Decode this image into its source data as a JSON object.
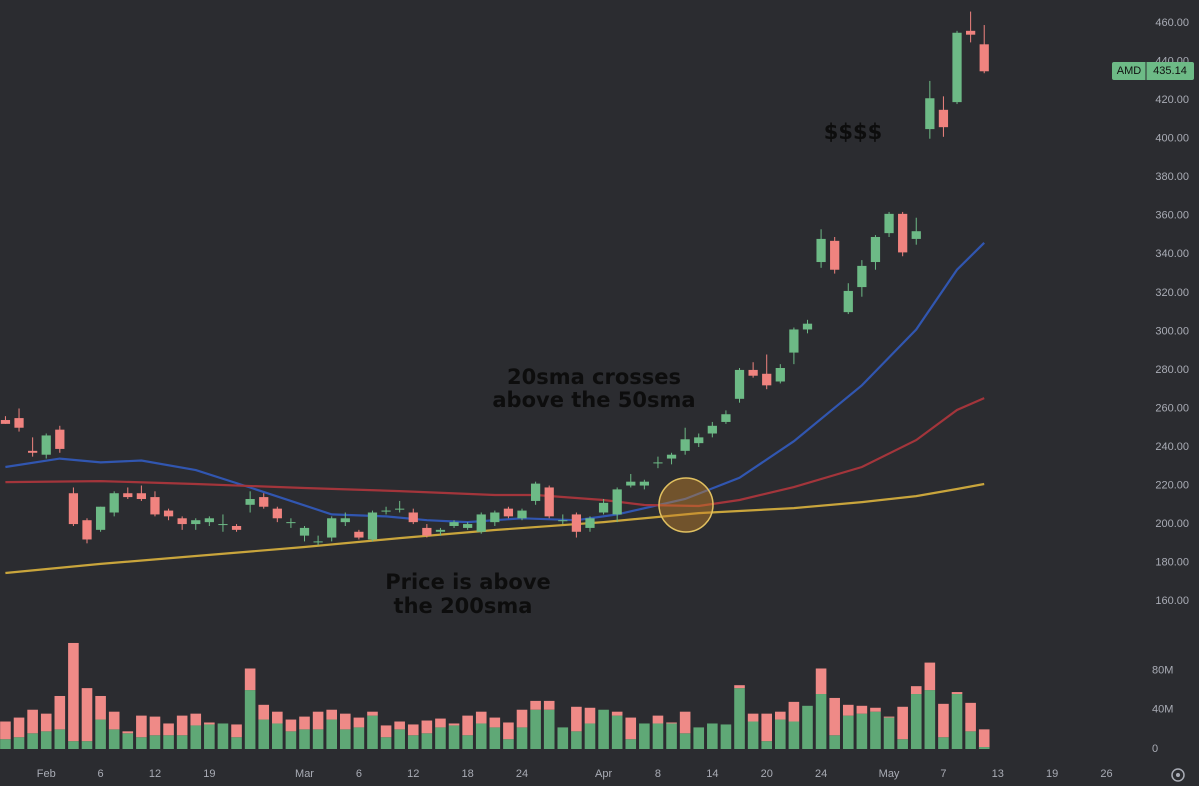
{
  "chart_data": {
    "type": "candlestick",
    "annotations": [
      "20sma crosses",
      "above the 50sma",
      "Price is above",
      "the 200sma",
      "$$$$"
    ],
    "last_price": {
      "symbol": "AMD",
      "value": 435.14
    },
    "up_color": "#6dba86",
    "down_color": "#f0837f",
    "xlim": [
      -0.4,
      81.4
    ],
    "xticks": [
      {
        "value": 3,
        "label": "Feb"
      },
      {
        "value": 7,
        "label": "6"
      },
      {
        "value": 11,
        "label": "12"
      },
      {
        "value": 15,
        "label": "19"
      },
      {
        "value": 22,
        "label": "Mar"
      },
      {
        "value": 26,
        "label": "6"
      },
      {
        "value": 30,
        "label": "12"
      },
      {
        "value": 34,
        "label": "18"
      },
      {
        "value": 38,
        "label": "24"
      },
      {
        "value": 44,
        "label": "Apr"
      },
      {
        "value": 48,
        "label": "8"
      },
      {
        "value": 52,
        "label": "14"
      },
      {
        "value": 56,
        "label": "20"
      },
      {
        "value": 60,
        "label": "24"
      },
      {
        "value": 65,
        "label": "May"
      },
      {
        "value": 69,
        "label": "7"
      },
      {
        "value": 73,
        "label": "13"
      },
      {
        "value": 77,
        "label": "19"
      },
      {
        "value": 81,
        "label": "26"
      }
    ],
    "ylim": [
      150,
      472
    ],
    "yticks": [
      {
        "value": 160,
        "label": "160.00"
      },
      {
        "value": 180,
        "label": "180.00"
      },
      {
        "value": 200,
        "label": "200.00"
      },
      {
        "value": 220,
        "label": "220.00"
      },
      {
        "value": 240,
        "label": "240.00"
      },
      {
        "value": 260,
        "label": "260.00"
      },
      {
        "value": 280,
        "label": "280.00"
      },
      {
        "value": 300,
        "label": "300.00"
      },
      {
        "value": 320,
        "label": "320.00"
      },
      {
        "value": 340,
        "label": "340.00"
      },
      {
        "value": 360,
        "label": "360.00"
      },
      {
        "value": 380,
        "label": "380.00"
      },
      {
        "value": 400,
        "label": "400.00"
      },
      {
        "value": 420,
        "label": "420.00"
      },
      {
        "value": 440,
        "label": "440.00"
      },
      {
        "value": 460,
        "label": "460.00"
      }
    ],
    "open": [
      254,
      255,
      238,
      236,
      249,
      216,
      202,
      197,
      206,
      216,
      216,
      214,
      207,
      203,
      200,
      201,
      200,
      199,
      210,
      214,
      208,
      201,
      194,
      191,
      193,
      201,
      196,
      192,
      207,
      208,
      206,
      198,
      196,
      199,
      198,
      196,
      201,
      208,
      203,
      212,
      219,
      202,
      205,
      198,
      206,
      205,
      220,
      220,
      232,
      234,
      238,
      242,
      247,
      253,
      265,
      280,
      278,
      274,
      289,
      301,
      336,
      347,
      310,
      323,
      336,
      351,
      361,
      348,
      405,
      415,
      419,
      456,
      449
    ],
    "high": [
      256,
      260,
      245,
      247,
      251,
      219,
      203,
      209,
      217,
      219,
      220,
      217,
      208,
      204,
      203,
      204,
      205,
      200,
      217,
      216,
      209,
      203,
      199,
      194,
      204,
      206,
      197,
      207,
      209,
      212,
      208,
      200,
      198,
      202,
      201,
      206,
      207,
      209,
      208,
      222,
      220,
      205,
      206,
      204,
      213,
      219,
      226,
      223,
      235,
      237,
      250,
      247,
      253,
      259,
      281,
      284,
      288,
      283,
      302,
      306,
      353,
      349,
      325,
      337,
      350,
      362,
      362,
      359,
      430,
      422,
      456,
      466,
      459
    ],
    "low": [
      252,
      248,
      235,
      234,
      237,
      199,
      190,
      196,
      204,
      213,
      212,
      204,
      202,
      197,
      197,
      199,
      196,
      196,
      206,
      208,
      201,
      198,
      191,
      189,
      191,
      199,
      192,
      191,
      205,
      206,
      200,
      193,
      194,
      198,
      197,
      195,
      199,
      203,
      202,
      210,
      203,
      200,
      193,
      196,
      205,
      201,
      219,
      218,
      229,
      231,
      236,
      240,
      245,
      252,
      263,
      276,
      270,
      273,
      283,
      299,
      333,
      330,
      309,
      318,
      332,
      349,
      339,
      345,
      400,
      401,
      418,
      450,
      434
    ],
    "close": [
      252,
      250,
      237,
      246,
      239,
      200,
      192,
      209,
      216,
      214,
      213,
      205,
      204,
      200,
      202,
      203,
      200,
      197,
      213,
      209,
      203,
      201,
      198,
      191,
      203,
      203,
      193,
      206,
      207,
      208,
      201,
      194,
      197,
      201,
      200,
      205,
      206,
      204,
      207,
      221,
      204,
      202,
      196,
      203,
      211,
      218,
      222,
      222,
      232,
      236,
      244,
      245,
      251,
      257,
      280,
      277,
      272,
      281,
      301,
      304,
      348,
      332,
      321,
      334,
      349,
      361,
      341,
      352,
      421,
      406,
      455,
      454,
      435
    ],
    "sma": [
      {
        "color": "#3156b0",
        "x": [
          0,
          4,
          7,
          10,
          14,
          18,
          21,
          24,
          28,
          31,
          34,
          38,
          42,
          45,
          50,
          54,
          58,
          63,
          67,
          70,
          72
        ],
        "values": [
          229.6,
          234,
          232,
          233,
          228,
          219,
          212,
          205,
          204,
          202,
          201,
          203,
          202,
          205,
          213,
          224,
          243,
          272,
          301,
          332,
          346
        ]
      },
      {
        "color": "#a3353b",
        "x": [
          0,
          7,
          14,
          22,
          29,
          36,
          39,
          44,
          47,
          51,
          54,
          58,
          63,
          67,
          70,
          72
        ],
        "values": [
          221.8,
          222.3,
          220.8,
          218.7,
          217.1,
          215.1,
          215.1,
          212.5,
          209.9,
          209.4,
          212.5,
          219.2,
          229.6,
          243.6,
          259.2,
          265.4
        ]
      },
      {
        "color": "#c9a53c",
        "x": [
          0,
          7,
          14,
          22,
          29,
          36,
          44,
          51,
          58,
          63,
          67,
          70,
          72
        ],
        "values": [
          174.6,
          179.3,
          183.4,
          188.1,
          192.7,
          196.9,
          201,
          205.7,
          208.3,
          211.4,
          214.5,
          218.2,
          220.8
        ]
      }
    ],
    "volume": {
      "ylim": [
        0,
        110
      ],
      "yticks": [
        0,
        {
          "value": 40,
          "label": "40M"
        },
        {
          "value": 80,
          "label": "80M"
        }
      ],
      "series": [
        {
          "color": "#5fa876",
          "values": [
            10,
            12,
            16,
            18,
            20,
            8,
            8,
            30,
            20,
            16,
            12,
            14,
            14,
            14,
            24,
            25,
            26,
            12,
            60,
            30,
            26,
            18,
            20,
            20,
            30,
            20,
            22,
            34,
            12,
            20,
            14,
            16,
            22,
            24,
            14,
            26,
            22,
            10,
            22,
            40,
            40,
            22,
            18,
            26,
            40,
            34,
            10,
            26,
            26,
            26,
            16,
            22,
            26,
            25,
            62,
            28,
            8,
            30,
            28,
            44,
            56,
            14,
            34,
            36,
            38,
            32,
            10,
            56,
            60,
            12,
            56,
            18,
            2
          ]
        },
        {
          "color": "#ef8a87",
          "values": [
            18,
            20,
            24,
            18,
            34,
            100,
            54,
            24,
            18,
            2,
            22,
            19,
            12,
            20,
            12,
            2,
            0,
            13,
            22,
            15,
            12,
            12,
            13,
            18,
            10,
            16,
            10,
            4,
            12,
            8,
            11,
            13,
            9,
            2,
            20,
            12,
            10,
            17,
            18,
            9,
            9,
            0,
            25,
            16,
            0,
            4,
            22,
            0,
            8,
            1,
            22,
            0,
            0,
            0,
            3,
            8,
            28,
            8,
            20,
            0,
            26,
            38,
            11,
            8,
            4,
            1,
            33,
            8,
            28,
            34,
            2,
            29,
            18
          ]
        }
      ]
    }
  }
}
